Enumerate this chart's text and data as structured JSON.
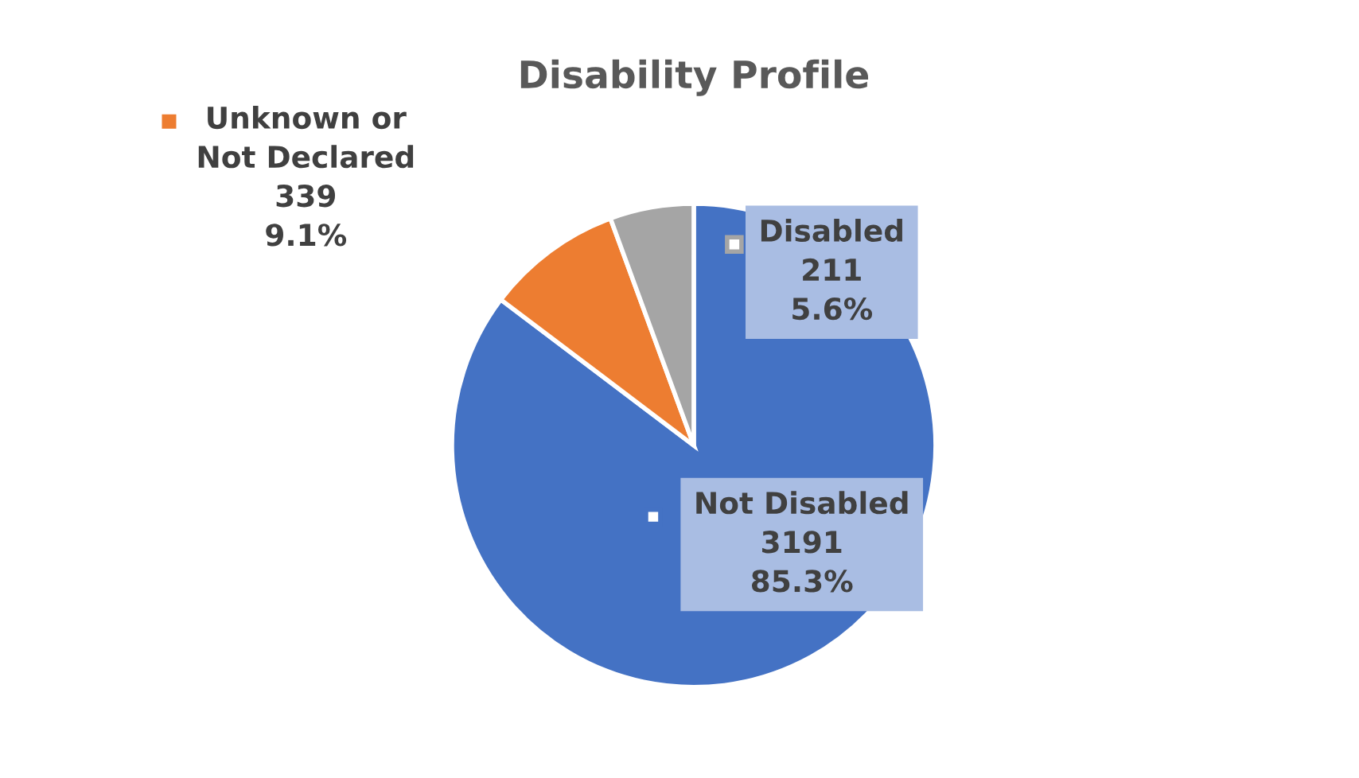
{
  "chart_data": {
    "type": "pie",
    "title": "Disability Profile",
    "categories": [
      "Not Disabled",
      "Unknown or\nNot Declared",
      "Disabled"
    ],
    "values": [
      85.3,
      9.1,
      5.6
    ],
    "colors": [
      "#4472c4",
      "#ed7d31",
      "#a5a5a5"
    ],
    "value_labels": [
      "3191\n85.3%",
      "339\n9.1%",
      "211\n5.6%"
    ],
    "legend": "top left"
  }
}
